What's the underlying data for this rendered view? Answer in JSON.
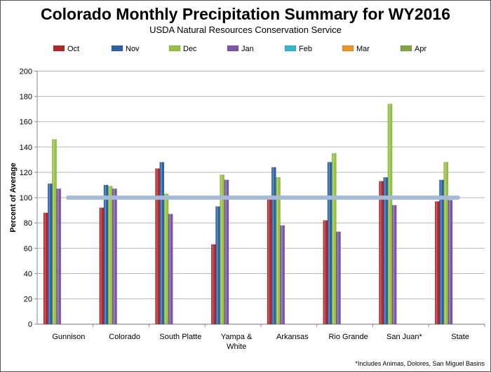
{
  "chart_data": {
    "type": "bar",
    "title": "Colorado Monthly Precipitation Summary for WY2016",
    "subtitle": "USDA Natural Resources Conservation Service",
    "ylabel": "Percent of Average",
    "xlabel": "",
    "ylim": [
      0,
      200
    ],
    "yticks": [
      0,
      20,
      40,
      60,
      80,
      100,
      120,
      140,
      160,
      180,
      200
    ],
    "grid": true,
    "legend_position": "top",
    "categories": [
      "Gunnison",
      "Colorado",
      "South Platte",
      "Yampa & White",
      "Arkansas",
      "Rio Grande",
      "San Juan*",
      "State"
    ],
    "category_labels": [
      [
        "Gunnison"
      ],
      [
        "Colorado"
      ],
      [
        "South Platte"
      ],
      [
        "Yampa &",
        "White"
      ],
      [
        "Arkansas"
      ],
      [
        "Rio Grande"
      ],
      [
        "San Juan*"
      ],
      [
        "State"
      ]
    ],
    "series": [
      {
        "name": "Oct",
        "color": "#b3282d",
        "values": [
          88,
          92,
          123,
          63,
          99,
          82,
          113,
          97
        ]
      },
      {
        "name": "Nov",
        "color": "#2a63a8",
        "values": [
          111,
          110,
          128,
          93,
          124,
          128,
          116,
          114
        ]
      },
      {
        "name": "Dec",
        "color": "#94c33e",
        "values": [
          146,
          109,
          103,
          118,
          116,
          135,
          174,
          128
        ]
      },
      {
        "name": "Jan",
        "color": "#7e55a8",
        "values": [
          107,
          107,
          87,
          114,
          78,
          73,
          94,
          98
        ]
      },
      {
        "name": "Feb",
        "color": "#35b3cf",
        "values": [
          null,
          null,
          null,
          null,
          null,
          null,
          null,
          null
        ]
      },
      {
        "name": "Mar",
        "color": "#f0942a",
        "values": [
          null,
          null,
          null,
          null,
          null,
          null,
          null,
          null
        ]
      },
      {
        "name": "Apr",
        "color": "#7fa63a",
        "values": [
          null,
          null,
          null,
          null,
          null,
          null,
          null,
          null
        ]
      }
    ],
    "reference_line": {
      "value": 100,
      "color": "#a6bbd9"
    },
    "footnote": "*Includes Animas, Dolores, San Miguel Basins"
  }
}
